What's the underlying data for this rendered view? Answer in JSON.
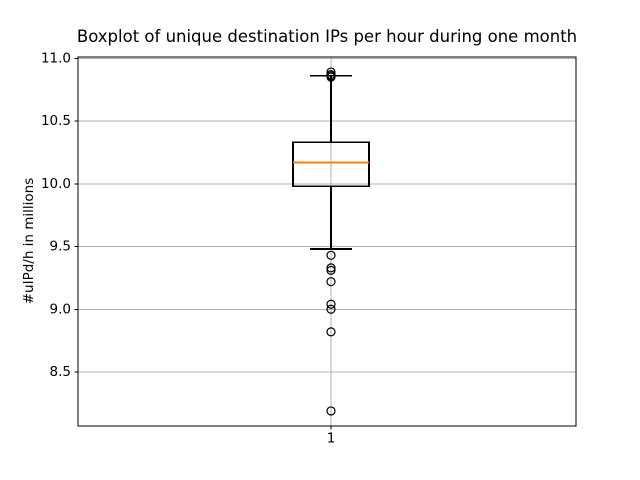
{
  "figure": {
    "background": "#ffffff"
  },
  "chart_data": {
    "type": "boxplot",
    "title": "Boxplot of unique destination IPs per hour during one month",
    "xlabel": "",
    "ylabel": "#uIPd/h in millions",
    "xticklabels": [
      "1"
    ],
    "yticks": [
      8.5,
      9.0,
      9.5,
      10.0,
      10.5,
      11.0
    ],
    "ylim": [
      8.07,
      11.01
    ],
    "grid": true,
    "legend": "none",
    "boxes": [
      {
        "category": "1",
        "q1": 9.98,
        "median": 10.17,
        "q3": 10.33,
        "whisker_low": 9.48,
        "whisker_high": 10.86,
        "outliers_low": [
          9.43,
          9.33,
          9.31,
          9.22,
          9.04,
          9.0,
          8.82,
          8.19
        ],
        "outliers_high": [
          10.85,
          10.86,
          10.87,
          10.89
        ]
      }
    ],
    "colors": {
      "median": "#ff7f0e",
      "box": "#000000",
      "grid": "#b0b0b0",
      "text": "#000000",
      "background": "#ffffff"
    }
  }
}
